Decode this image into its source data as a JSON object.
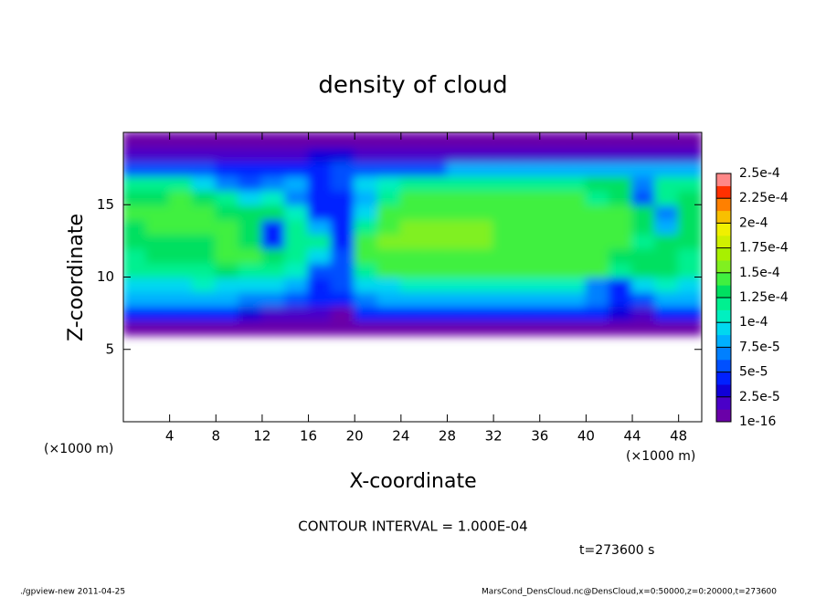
{
  "chart_data": {
    "type": "contour",
    "title": "density of cloud",
    "x_label": "X-coordinate",
    "y_label": "Z-coordinate",
    "y_unit": "(×1000 m)",
    "x_unit": "(×1000 m)",
    "contour_note": "CONTOUR INTERVAL = 1.000E-04",
    "time_note": "t=273600 s",
    "footer_left": "./gpview-new  2011-04-25",
    "footer_right": "MarsCond_DensCloud.nc@DensCloud,x=0:50000,z=0:20000,t=273600",
    "xlim": [
      0,
      50
    ],
    "ylim": [
      0,
      20
    ],
    "xticks": [
      4,
      8,
      12,
      16,
      20,
      24,
      28,
      32,
      36,
      40,
      44,
      48
    ],
    "yticks": [
      5,
      10,
      15
    ],
    "x": [
      1,
      3,
      5,
      7,
      9,
      11,
      13,
      15,
      17,
      19,
      21,
      23,
      25,
      27,
      29,
      31,
      33,
      35,
      37,
      39,
      41,
      43,
      45,
      47,
      49
    ],
    "y": [
      6.5,
      7.5,
      8.5,
      9.5,
      10.5,
      11.5,
      12.5,
      13.5,
      14.5,
      15.5,
      16.5,
      17.5,
      18.5,
      19.5
    ],
    "values": [
      [
        1e-05,
        1e-05,
        1e-05,
        1e-05,
        1e-05,
        1e-05,
        5e-06,
        5e-06,
        5e-06,
        1e-05,
        1e-05,
        5e-06,
        1e-05,
        1e-05,
        1e-05,
        1e-05,
        1e-05,
        1e-05,
        1e-05,
        1e-05,
        1e-05,
        1e-05,
        5e-06,
        1e-05,
        1e-05
      ],
      [
        4e-05,
        4e-05,
        4e-05,
        4e-05,
        4e-05,
        3e-05,
        2e-05,
        2e-05,
        2e-05,
        1e-05,
        4e-05,
        4e-05,
        4e-05,
        4e-05,
        4e-05,
        4e-05,
        4e-05,
        4e-05,
        4e-05,
        4e-05,
        4e-05,
        3e-05,
        2e-05,
        4e-05,
        4e-05
      ],
      [
        8e-05,
        8e-05,
        8e-05,
        8e-05,
        8e-05,
        7e-05,
        7e-05,
        6e-05,
        5e-05,
        4e-05,
        7e-05,
        8e-05,
        8e-05,
        8e-05,
        8e-05,
        8e-05,
        8e-05,
        8e-05,
        8e-05,
        8e-05,
        7e-05,
        4e-05,
        6e-05,
        8e-05,
        8e-05
      ],
      [
        0.0001,
        0.0001,
        0.0001,
        0.00011,
        0.0001,
        0.0001,
        0.0001,
        8e-05,
        5e-05,
        6e-05,
        0.0001,
        0.0001,
        0.00011,
        0.00011,
        0.00011,
        0.00011,
        0.00011,
        0.00011,
        0.00011,
        0.00011,
        7e-05,
        5e-05,
        9e-05,
        0.00011,
        0.0001
      ],
      [
        0.00012,
        0.00012,
        0.00012,
        0.00012,
        0.00013,
        0.00012,
        0.00012,
        0.00011,
        6e-05,
        6e-05,
        0.00012,
        0.00014,
        0.00014,
        0.00014,
        0.00014,
        0.00014,
        0.00014,
        0.00014,
        0.00014,
        0.00014,
        0.00014,
        0.00012,
        0.00013,
        0.00013,
        0.00012
      ],
      [
        0.00012,
        0.00013,
        0.00013,
        0.00013,
        0.00014,
        0.00014,
        0.00013,
        0.00012,
        0.0001,
        6e-05,
        0.00014,
        0.00015,
        0.00015,
        0.00015,
        0.00015,
        0.00015,
        0.00015,
        0.00015,
        0.00015,
        0.00015,
        0.00014,
        0.00013,
        0.00013,
        0.00013,
        0.00012
      ],
      [
        0.00013,
        0.00013,
        0.00013,
        0.00013,
        0.00014,
        0.00013,
        5e-05,
        0.00012,
        0.00012,
        5e-05,
        0.00015,
        0.00016,
        0.00016,
        0.00016,
        0.00016,
        0.00016,
        0.00015,
        0.00015,
        0.00015,
        0.00015,
        0.00015,
        0.00014,
        0.00012,
        0.00013,
        0.00013
      ],
      [
        0.00013,
        0.00014,
        0.00014,
        0.00014,
        0.00014,
        0.00013,
        5e-05,
        0.00012,
        8e-05,
        5e-05,
        0.00012,
        0.00015,
        0.00016,
        0.00016,
        0.00016,
        0.00016,
        0.00015,
        0.00015,
        0.00015,
        0.00015,
        0.00014,
        0.00015,
        0.00013,
        8e-05,
        0.00013
      ],
      [
        0.00014,
        0.00014,
        0.00014,
        0.00014,
        0.00013,
        0.00013,
        0.00013,
        0.00011,
        5e-05,
        4e-05,
        0.0001,
        0.00014,
        0.00015,
        0.00015,
        0.00015,
        0.00015,
        0.00015,
        0.00015,
        0.00015,
        0.00015,
        0.00014,
        0.00014,
        0.00013,
        7e-05,
        0.00013
      ],
      [
        0.00013,
        0.00013,
        0.00014,
        0.00013,
        0.00012,
        9e-05,
        0.00011,
        7e-05,
        4e-05,
        5e-05,
        8e-05,
        0.00012,
        0.00014,
        0.00014,
        0.00014,
        0.00014,
        0.00014,
        0.00014,
        0.00014,
        0.00014,
        0.00012,
        0.00013,
        6e-05,
        0.00012,
        0.00013
      ],
      [
        0.00012,
        0.00012,
        0.00012,
        0.0001,
        7e-05,
        6e-05,
        7e-05,
        8e-05,
        5e-05,
        6e-05,
        9e-05,
        0.00011,
        0.00012,
        0.00012,
        0.00012,
        0.00012,
        0.00012,
        0.00012,
        0.00012,
        0.00012,
        0.00013,
        0.00013,
        7e-05,
        0.00012,
        0.00012
      ],
      [
        6e-05,
        6e-05,
        6e-05,
        6e-05,
        4e-05,
        4e-05,
        5e-05,
        5e-05,
        5e-05,
        6e-05,
        6e-05,
        6e-05,
        6e-05,
        6e-05,
        8e-05,
        8e-05,
        8e-05,
        8e-05,
        8e-05,
        8e-05,
        8e-05,
        8e-05,
        8e-05,
        8e-05,
        8e-05
      ],
      [
        2e-05,
        2e-05,
        2e-05,
        2e-05,
        2e-05,
        2e-05,
        2e-05,
        2e-05,
        3e-05,
        3e-05,
        2e-05,
        2e-05,
        2e-05,
        2e-05,
        2e-05,
        2e-05,
        2e-05,
        2e-05,
        2e-05,
        2e-05,
        2e-05,
        2e-05,
        2e-05,
        2e-05,
        2e-05
      ],
      [
        5e-06,
        5e-06,
        5e-06,
        5e-06,
        5e-06,
        5e-06,
        5e-06,
        5e-06,
        5e-06,
        5e-06,
        5e-06,
        5e-06,
        5e-06,
        5e-06,
        5e-06,
        5e-06,
        5e-06,
        5e-06,
        5e-06,
        5e-06,
        5e-06,
        5e-06,
        5e-06,
        5e-06,
        5e-06
      ]
    ],
    "clim": [
      1e-16,
      0.00025
    ],
    "cticks": [
      {
        "value": 1e-16,
        "label": "1e-16"
      },
      {
        "value": 2.5e-05,
        "label": "2.5e-5"
      },
      {
        "value": 5e-05,
        "label": "5e-5"
      },
      {
        "value": 7.5e-05,
        "label": "7.5e-5"
      },
      {
        "value": 0.0001,
        "label": "1e-4"
      },
      {
        "value": 0.000125,
        "label": "1.25e-4"
      },
      {
        "value": 0.00015,
        "label": "1.5e-4"
      },
      {
        "value": 0.000175,
        "label": "1.75e-4"
      },
      {
        "value": 0.0002,
        "label": "2e-4"
      },
      {
        "value": 0.000225,
        "label": "2.25e-4"
      },
      {
        "value": 0.00025,
        "label": "2.5e-4"
      }
    ],
    "colors": [
      "#6a00a8",
      "#4a00c8",
      "#1000d8",
      "#0020ff",
      "#0050ff",
      "#0080ff",
      "#00b0ff",
      "#00d8f0",
      "#00f0c0",
      "#00f090",
      "#00e060",
      "#40f040",
      "#80f020",
      "#a8f000",
      "#d0f000",
      "#f0f000",
      "#f8c000",
      "#ff8000",
      "#ff3000",
      "#ff8888"
    ]
  }
}
